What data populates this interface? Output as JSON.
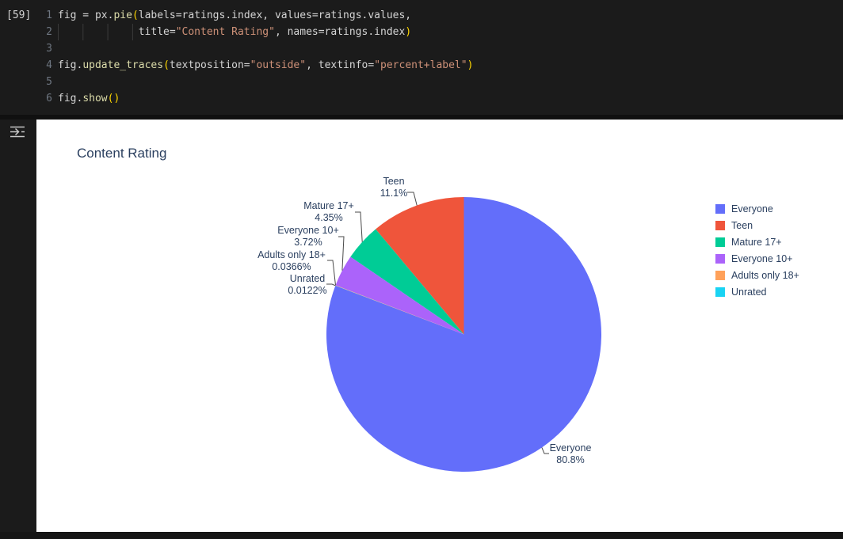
{
  "code_cell": {
    "execution_label": "[59]",
    "lines": [
      {
        "num": "1",
        "indent": 0,
        "segments": [
          {
            "c": "plain",
            "t": "fig = px."
          },
          {
            "c": "fn",
            "t": "pie"
          },
          {
            "c": "bracket",
            "t": "("
          },
          {
            "c": "plain",
            "t": "labels=ratings.index, values=ratings.values,"
          }
        ]
      },
      {
        "num": "2",
        "indent": 13,
        "segments": [
          {
            "c": "plain",
            "t": "title="
          },
          {
            "c": "str",
            "t": "\"Content Rating\""
          },
          {
            "c": "plain",
            "t": ", names=ratings.index"
          },
          {
            "c": "bracket",
            "t": ")"
          }
        ]
      },
      {
        "num": "3",
        "indent": 0,
        "segments": []
      },
      {
        "num": "4",
        "indent": 0,
        "segments": [
          {
            "c": "plain",
            "t": "fig."
          },
          {
            "c": "fn",
            "t": "update_traces"
          },
          {
            "c": "bracket",
            "t": "("
          },
          {
            "c": "plain",
            "t": "textposition="
          },
          {
            "c": "str",
            "t": "\"outside\""
          },
          {
            "c": "plain",
            "t": ", textinfo="
          },
          {
            "c": "str",
            "t": "\"percent+label\""
          },
          {
            "c": "bracket",
            "t": ")"
          }
        ]
      },
      {
        "num": "5",
        "indent": 0,
        "segments": []
      },
      {
        "num": "6",
        "indent": 0,
        "segments": [
          {
            "c": "plain",
            "t": "fig."
          },
          {
            "c": "fn",
            "t": "show"
          },
          {
            "c": "bracket",
            "t": "()"
          }
        ]
      }
    ]
  },
  "chart_data": {
    "type": "pie",
    "title": "Content Rating",
    "labels": [
      "Everyone",
      "Teen",
      "Mature 17+",
      "Everyone 10+",
      "Adults only 18+",
      "Unrated"
    ],
    "values": [
      80.8,
      11.1,
      4.35,
      3.72,
      0.0366,
      0.0122
    ],
    "colors": [
      "#636EFA",
      "#EF553B",
      "#00CC96",
      "#AB63FA",
      "#FFA15A",
      "#19D3F3"
    ],
    "textinfo": "percent+label",
    "textposition": "outside",
    "legend_position": "right",
    "slice_labels": [
      {
        "name": "Everyone",
        "pct": "80.8%"
      },
      {
        "name": "Teen",
        "pct": "11.1%"
      },
      {
        "name": "Mature 17+",
        "pct": "4.35%"
      },
      {
        "name": "Everyone 10+",
        "pct": "3.72%"
      },
      {
        "name": "Adults only 18+",
        "pct": "0.0366%"
      },
      {
        "name": "Unrated",
        "pct": "0.0122%"
      }
    ]
  }
}
